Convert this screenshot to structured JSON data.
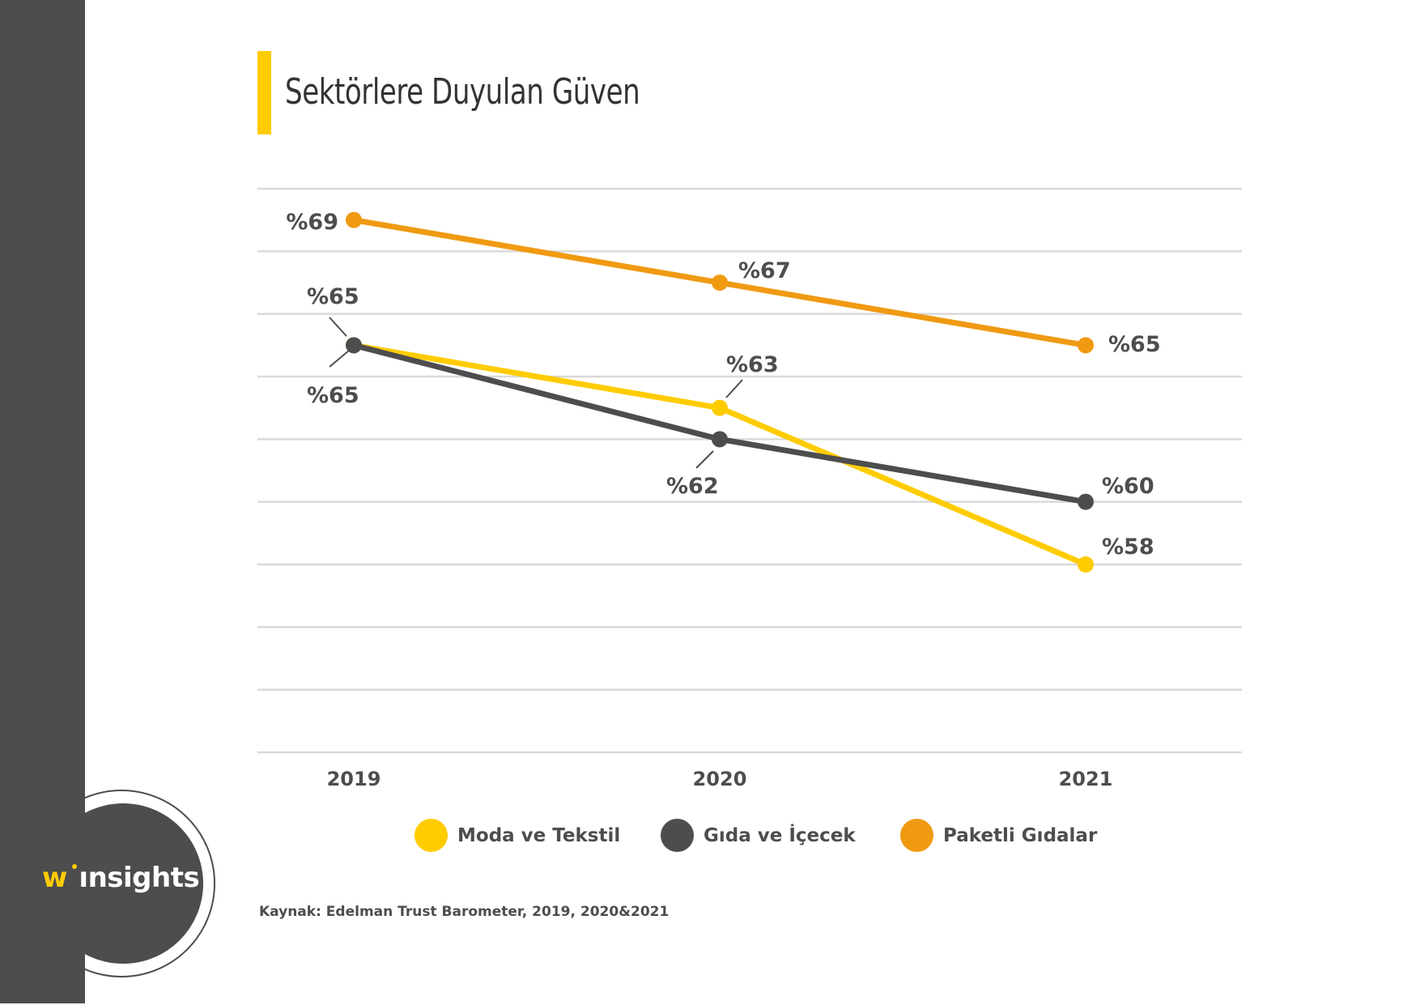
{
  "title": "Sektörlere Duyulan Güven",
  "colors": {
    "sidebar": "#4d4d4d",
    "accent": "#ffcc00",
    "moda": "#ffcc00",
    "gida": "#4d4d4d",
    "paketli": "#f09a12",
    "grid": "#d9d9d9",
    "text": "#4d4d4d"
  },
  "logo": {
    "prefix": "w",
    "text": "ınsights"
  },
  "source": "Kaynak: Edelman Trust Barometer, 2019, 2020&2021",
  "chart_data": {
    "type": "line",
    "title": "Sektörlere Duyulan Güven",
    "xlabel": "",
    "ylabel": "",
    "x": [
      "2019",
      "2020",
      "2021"
    ],
    "ylim": [
      52,
      70
    ],
    "grid": true,
    "gridline_step": 2,
    "legend_position": "bottom",
    "series": [
      {
        "name": "Moda ve Tekstil",
        "color": "#ffcc00",
        "values": [
          65,
          63,
          58
        ],
        "labels": [
          "%65",
          "%63",
          "%58"
        ]
      },
      {
        "name": "Gıda ve İçecek",
        "color": "#4d4d4d",
        "values": [
          65,
          62,
          60
        ],
        "labels": [
          "%65",
          "%62",
          "%60"
        ]
      },
      {
        "name": "Paketli Gıdalar",
        "color": "#f09a12",
        "values": [
          69,
          67,
          65
        ],
        "labels": [
          "%69",
          "%67",
          "%65"
        ]
      }
    ]
  }
}
